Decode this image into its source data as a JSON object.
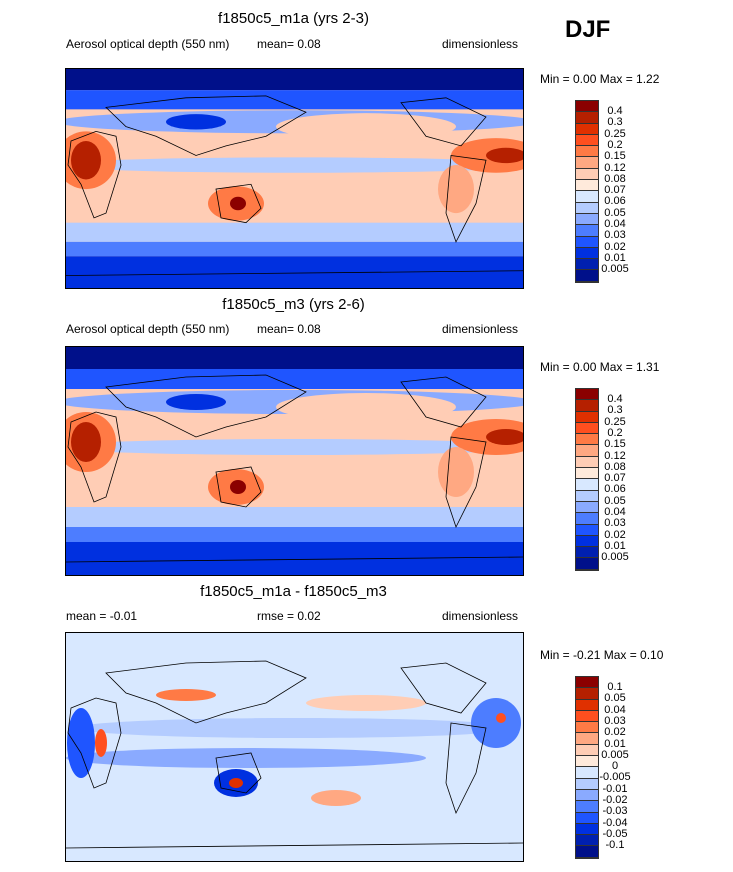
{
  "season": "DJF",
  "panels": [
    {
      "title": "f1850c5_m1a (yrs 2-3)",
      "left": "Aerosol optical depth (550 nm)",
      "center": "mean=  0.08",
      "right": "dimensionless",
      "minmax": "Min =   0.00 Max =   1.22",
      "levels": [
        "0.4",
        "0.3",
        "0.25",
        "0.2",
        "0.15",
        "0.12",
        "0.08",
        "0.07",
        "0.06",
        "0.05",
        "0.04",
        "0.03",
        "0.02",
        "0.01",
        "0.005"
      ]
    },
    {
      "title": "f1850c5_m3 (yrs 2-6)",
      "left": "Aerosol optical depth (550 nm)",
      "center": "mean=  0.08",
      "right": "dimensionless",
      "minmax": "Min =   0.00 Max =   1.31",
      "levels": [
        "0.4",
        "0.3",
        "0.25",
        "0.2",
        "0.15",
        "0.12",
        "0.08",
        "0.07",
        "0.06",
        "0.05",
        "0.04",
        "0.03",
        "0.02",
        "0.01",
        "0.005"
      ]
    },
    {
      "title": "f1850c5_m1a - f1850c5_m3",
      "left": "mean =  -0.01",
      "center": "rmse =  0.02",
      "right": "dimensionless",
      "minmax": "Min =  -0.21 Max =   0.10",
      "levels": [
        "0.1",
        "0.05",
        "0.04",
        "0.03",
        "0.02",
        "0.01",
        "0.005",
        "0",
        "-0.005",
        "-0.01",
        "-0.02",
        "-0.03",
        "-0.04",
        "-0.05",
        "-0.1"
      ]
    }
  ],
  "colors": [
    "#8b0000",
    "#b52000",
    "#e03000",
    "#ff4f1f",
    "#ff7a45",
    "#ffa882",
    "#ffcdb5",
    "#ffeadb",
    "#d8e8ff",
    "#b4ccff",
    "#8aaaff",
    "#4d7dff",
    "#1f55ff",
    "#0030e0",
    "#0020b0",
    "#00108a"
  ]
}
